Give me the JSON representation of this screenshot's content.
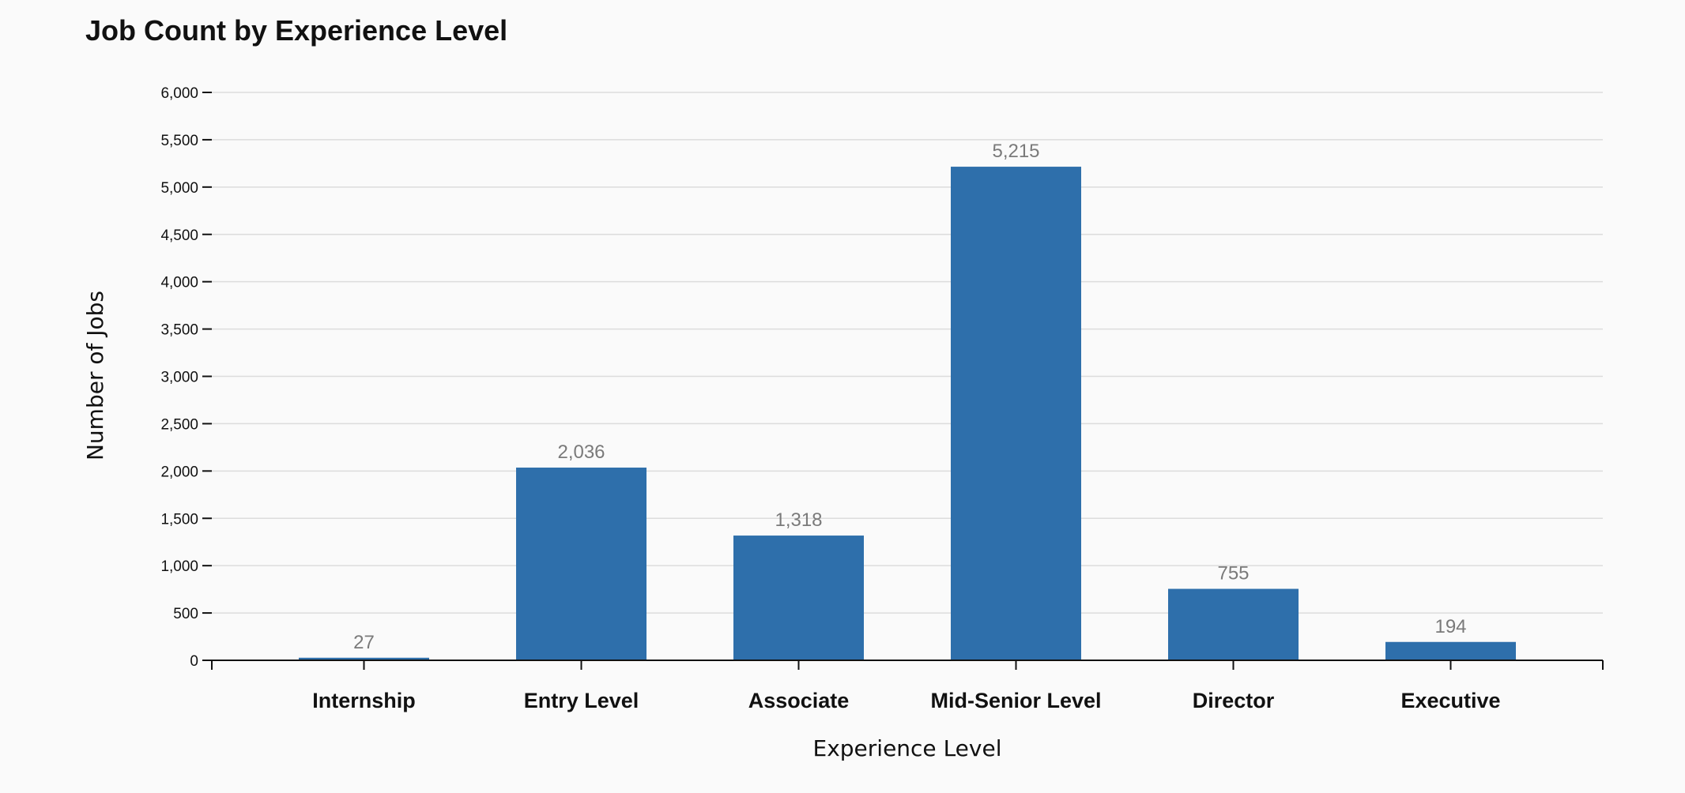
{
  "chart_data": {
    "type": "bar",
    "title": "Job Count by Experience Level",
    "xlabel": "Experience Level",
    "ylabel": "Number of Jobs",
    "categories": [
      "Internship",
      "Entry Level",
      "Associate",
      "Mid-Senior Level",
      "Director",
      "Executive"
    ],
    "values": [
      27,
      2036,
      1318,
      5215,
      755,
      194
    ],
    "value_labels": [
      "27",
      "2,036",
      "1,318",
      "5,215",
      "755",
      "194"
    ],
    "ylim": [
      0,
      6000
    ],
    "yticks": [
      0,
      500,
      1000,
      1500,
      2000,
      2500,
      3000,
      3500,
      4000,
      4500,
      5000,
      5500,
      6000
    ],
    "ytick_labels": [
      "0",
      "500",
      "1,000",
      "1,500",
      "2,000",
      "2,500",
      "3,000",
      "3,500",
      "4,000",
      "4,500",
      "5,000",
      "5,500",
      "6,000"
    ],
    "grid": true,
    "bar_color": "#2e6fab"
  }
}
